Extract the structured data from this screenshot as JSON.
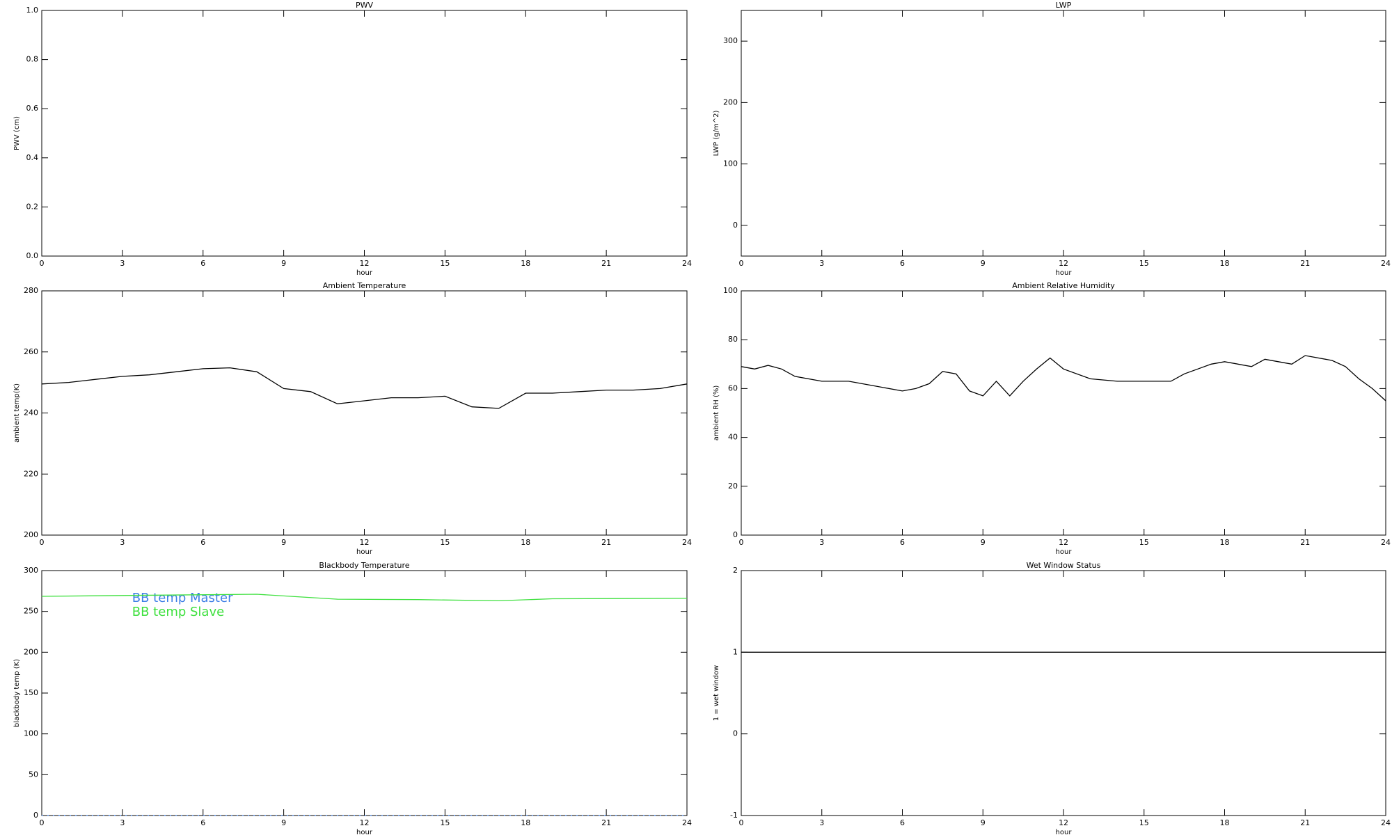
{
  "chart_data": [
    {
      "type": "line",
      "title": "PWV",
      "xlabel": "hour",
      "ylabel": "PWV (cm)",
      "xlim": [
        0,
        24
      ],
      "xticks": [
        0,
        3,
        6,
        9,
        12,
        15,
        18,
        21,
        24
      ],
      "ylim": [
        0,
        1
      ],
      "yticks": [
        {
          "value": 0,
          "label": "0.0"
        },
        0.2,
        0.4,
        0.6,
        0.8,
        {
          "value": 1,
          "label": "1.0"
        }
      ],
      "x": [],
      "series": []
    },
    {
      "type": "line",
      "title": "LWP",
      "xlabel": "hour",
      "ylabel": "LWP (g/m^2)",
      "xlim": [
        0,
        24
      ],
      "xticks": [
        0,
        3,
        6,
        9,
        12,
        15,
        18,
        21,
        24
      ],
      "ylim": [
        -50,
        350
      ],
      "yticks": [
        0,
        100,
        200,
        300
      ],
      "x": [],
      "series": []
    },
    {
      "type": "line",
      "title": "Ambient Temperature",
      "xlabel": "hour",
      "ylabel": "ambient temp(K)",
      "xlim": [
        0,
        24
      ],
      "xticks": [
        0,
        3,
        6,
        9,
        12,
        15,
        18,
        21,
        24
      ],
      "ylim": [
        200,
        280
      ],
      "yticks": [
        200,
        220,
        240,
        260,
        280
      ],
      "x": [
        0,
        1,
        2,
        3,
        4,
        5,
        6,
        7,
        8,
        9,
        10,
        11,
        12,
        13,
        14,
        15,
        16,
        17,
        18,
        19,
        20,
        21,
        22,
        23,
        24
      ],
      "series": [
        {
          "color": "#000000",
          "values": [
            249.5,
            250,
            251,
            252,
            252.5,
            253.5,
            254.5,
            254.8,
            253.5,
            248,
            247,
            243,
            244,
            245,
            245,
            245.5,
            242,
            241.5,
            246.5,
            246.5,
            247,
            247.5,
            247.5,
            248,
            249.5
          ]
        }
      ]
    },
    {
      "type": "line",
      "title": "Ambient Relative Humidity",
      "xlabel": "hour",
      "ylabel": "ambient RH (%)",
      "xlim": [
        0,
        24
      ],
      "xticks": [
        0,
        3,
        6,
        9,
        12,
        15,
        18,
        21,
        24
      ],
      "ylim": [
        0,
        100
      ],
      "yticks": [
        0,
        20,
        40,
        60,
        80,
        100
      ],
      "x": [
        0,
        0.5,
        1,
        1.5,
        2,
        3,
        4,
        5,
        6,
        6.5,
        7,
        7.5,
        8,
        8.5,
        9,
        9.5,
        10,
        10.5,
        11,
        11.5,
        12,
        13,
        14,
        15,
        16,
        16.5,
        17,
        17.5,
        18,
        19,
        19.5,
        20,
        20.5,
        21,
        22,
        22.5,
        23,
        23.5,
        24
      ],
      "series": [
        {
          "color": "#000000",
          "values": [
            69,
            68,
            69.5,
            68,
            65,
            63,
            63,
            61,
            59,
            60,
            62,
            67,
            66,
            59,
            57,
            63,
            57,
            63,
            68,
            72.5,
            68,
            64,
            63,
            63,
            63,
            66,
            68,
            70,
            71,
            69,
            72,
            71,
            70,
            73.5,
            71.5,
            69,
            64,
            60,
            55
          ]
        }
      ]
    },
    {
      "type": "line",
      "title": "Blackbody Temperature",
      "xlabel": "hour",
      "ylabel": "blackbody temp (K)",
      "xlim": [
        0,
        24
      ],
      "xticks": [
        0,
        3,
        6,
        9,
        12,
        15,
        18,
        21,
        24
      ],
      "ylim": [
        0,
        300
      ],
      "yticks": [
        0,
        50,
        100,
        150,
        200,
        250,
        300
      ],
      "legend": "upper left",
      "x": [
        0,
        3,
        8,
        11,
        14,
        17,
        19,
        24
      ],
      "series": [
        {
          "name": "BB temp Master",
          "color": "#3d7fe6",
          "values": [
            0,
            0,
            0,
            0,
            0,
            0,
            0,
            0
          ]
        },
        {
          "name": "BB temp Slave",
          "color": "#3ee03e",
          "values": [
            268.5,
            269.5,
            271,
            265,
            264.5,
            263,
            265.5,
            266
          ]
        }
      ]
    },
    {
      "type": "line",
      "title": "Wet Window Status",
      "xlabel": "hour",
      "ylabel": "1 = wet window",
      "xlim": [
        0,
        24
      ],
      "xticks": [
        0,
        3,
        6,
        9,
        12,
        15,
        18,
        21,
        24
      ],
      "ylim": [
        -1,
        2
      ],
      "yticks": [
        -1,
        0,
        1,
        2
      ],
      "x": [
        0,
        24
      ],
      "series": [
        {
          "color": "#000000",
          "values": [
            1,
            1
          ]
        }
      ]
    }
  ]
}
